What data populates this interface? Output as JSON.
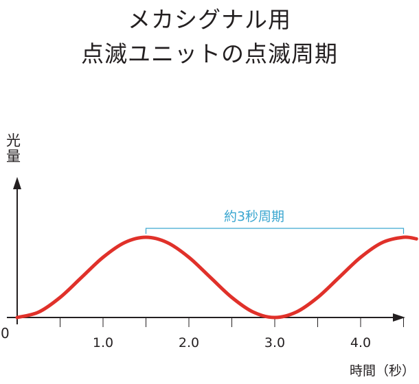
{
  "title": {
    "line1": "メカシグナル用",
    "line2": "点滅ユニットの点滅周期"
  },
  "chart_data": {
    "type": "line",
    "title": "メカシグナル用 点滅ユニットの点滅周期",
    "ylabel": "光量",
    "xlabel": "時間（秒）",
    "origin_label": "0",
    "x_ticks": [
      0.5,
      1.0,
      1.5,
      2.0,
      2.5,
      3.0,
      3.5,
      4.0,
      4.5
    ],
    "x_tick_labels": [
      "1.0",
      "2.0",
      "3.0",
      "4.0"
    ],
    "x_tick_label_values": [
      1.0,
      2.0,
      3.0,
      4.0
    ],
    "xlim": [
      0,
      4.7
    ],
    "ylim": [
      0,
      1.1
    ],
    "series": [
      {
        "x": [
          0.0,
          0.25,
          0.5,
          0.75,
          1.0,
          1.25,
          1.5,
          1.75,
          2.0,
          2.25,
          2.5,
          2.75,
          3.0,
          3.25,
          3.5,
          3.75,
          4.0,
          4.25,
          4.5,
          4.65
        ],
        "y": [
          0.0,
          0.067,
          0.25,
          0.5,
          0.75,
          0.933,
          1.0,
          0.933,
          0.75,
          0.5,
          0.25,
          0.067,
          0.0,
          0.067,
          0.25,
          0.5,
          0.75,
          0.933,
          1.0,
          0.98
        ],
        "color": "#e0312a"
      }
    ],
    "annotation": {
      "text": "約3秒周期",
      "x_start": 1.5,
      "x_end": 4.5,
      "color": "#3aa6d0"
    },
    "grid": false
  }
}
